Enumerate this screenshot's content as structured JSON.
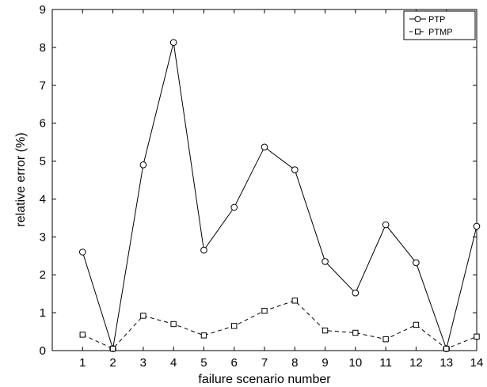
{
  "chart_data": {
    "type": "line",
    "xlabel": "failure scenario number",
    "ylabel": "relative error (%)",
    "x": [
      1,
      2,
      3,
      4,
      5,
      6,
      7,
      8,
      9,
      10,
      11,
      12,
      13,
      14
    ],
    "xlim": [
      0,
      14
    ],
    "ylim": [
      0,
      9
    ],
    "xticks": [
      "1",
      "2",
      "3",
      "4",
      "5",
      "6",
      "7",
      "8",
      "9",
      "10",
      "11",
      "12",
      "13",
      "14"
    ],
    "yticks": [
      "0",
      "1",
      "2",
      "3",
      "4",
      "5",
      "6",
      "7",
      "8",
      "9"
    ],
    "grid": false,
    "legend_position": "top-right",
    "series": [
      {
        "name": "PTP",
        "marker": "circle",
        "line_style": "solid",
        "color": "#000000",
        "values": [
          2.6,
          0.05,
          4.9,
          8.13,
          2.65,
          3.78,
          5.37,
          4.77,
          2.35,
          1.52,
          3.32,
          2.32,
          0.05,
          3.28
        ]
      },
      {
        "name": "PTMP",
        "marker": "square",
        "line_style": "dashed",
        "color": "#000000",
        "values": [
          0.42,
          0.05,
          0.92,
          0.7,
          0.4,
          0.65,
          1.05,
          1.32,
          0.53,
          0.47,
          0.3,
          0.68,
          0.05,
          0.37
        ]
      }
    ]
  }
}
